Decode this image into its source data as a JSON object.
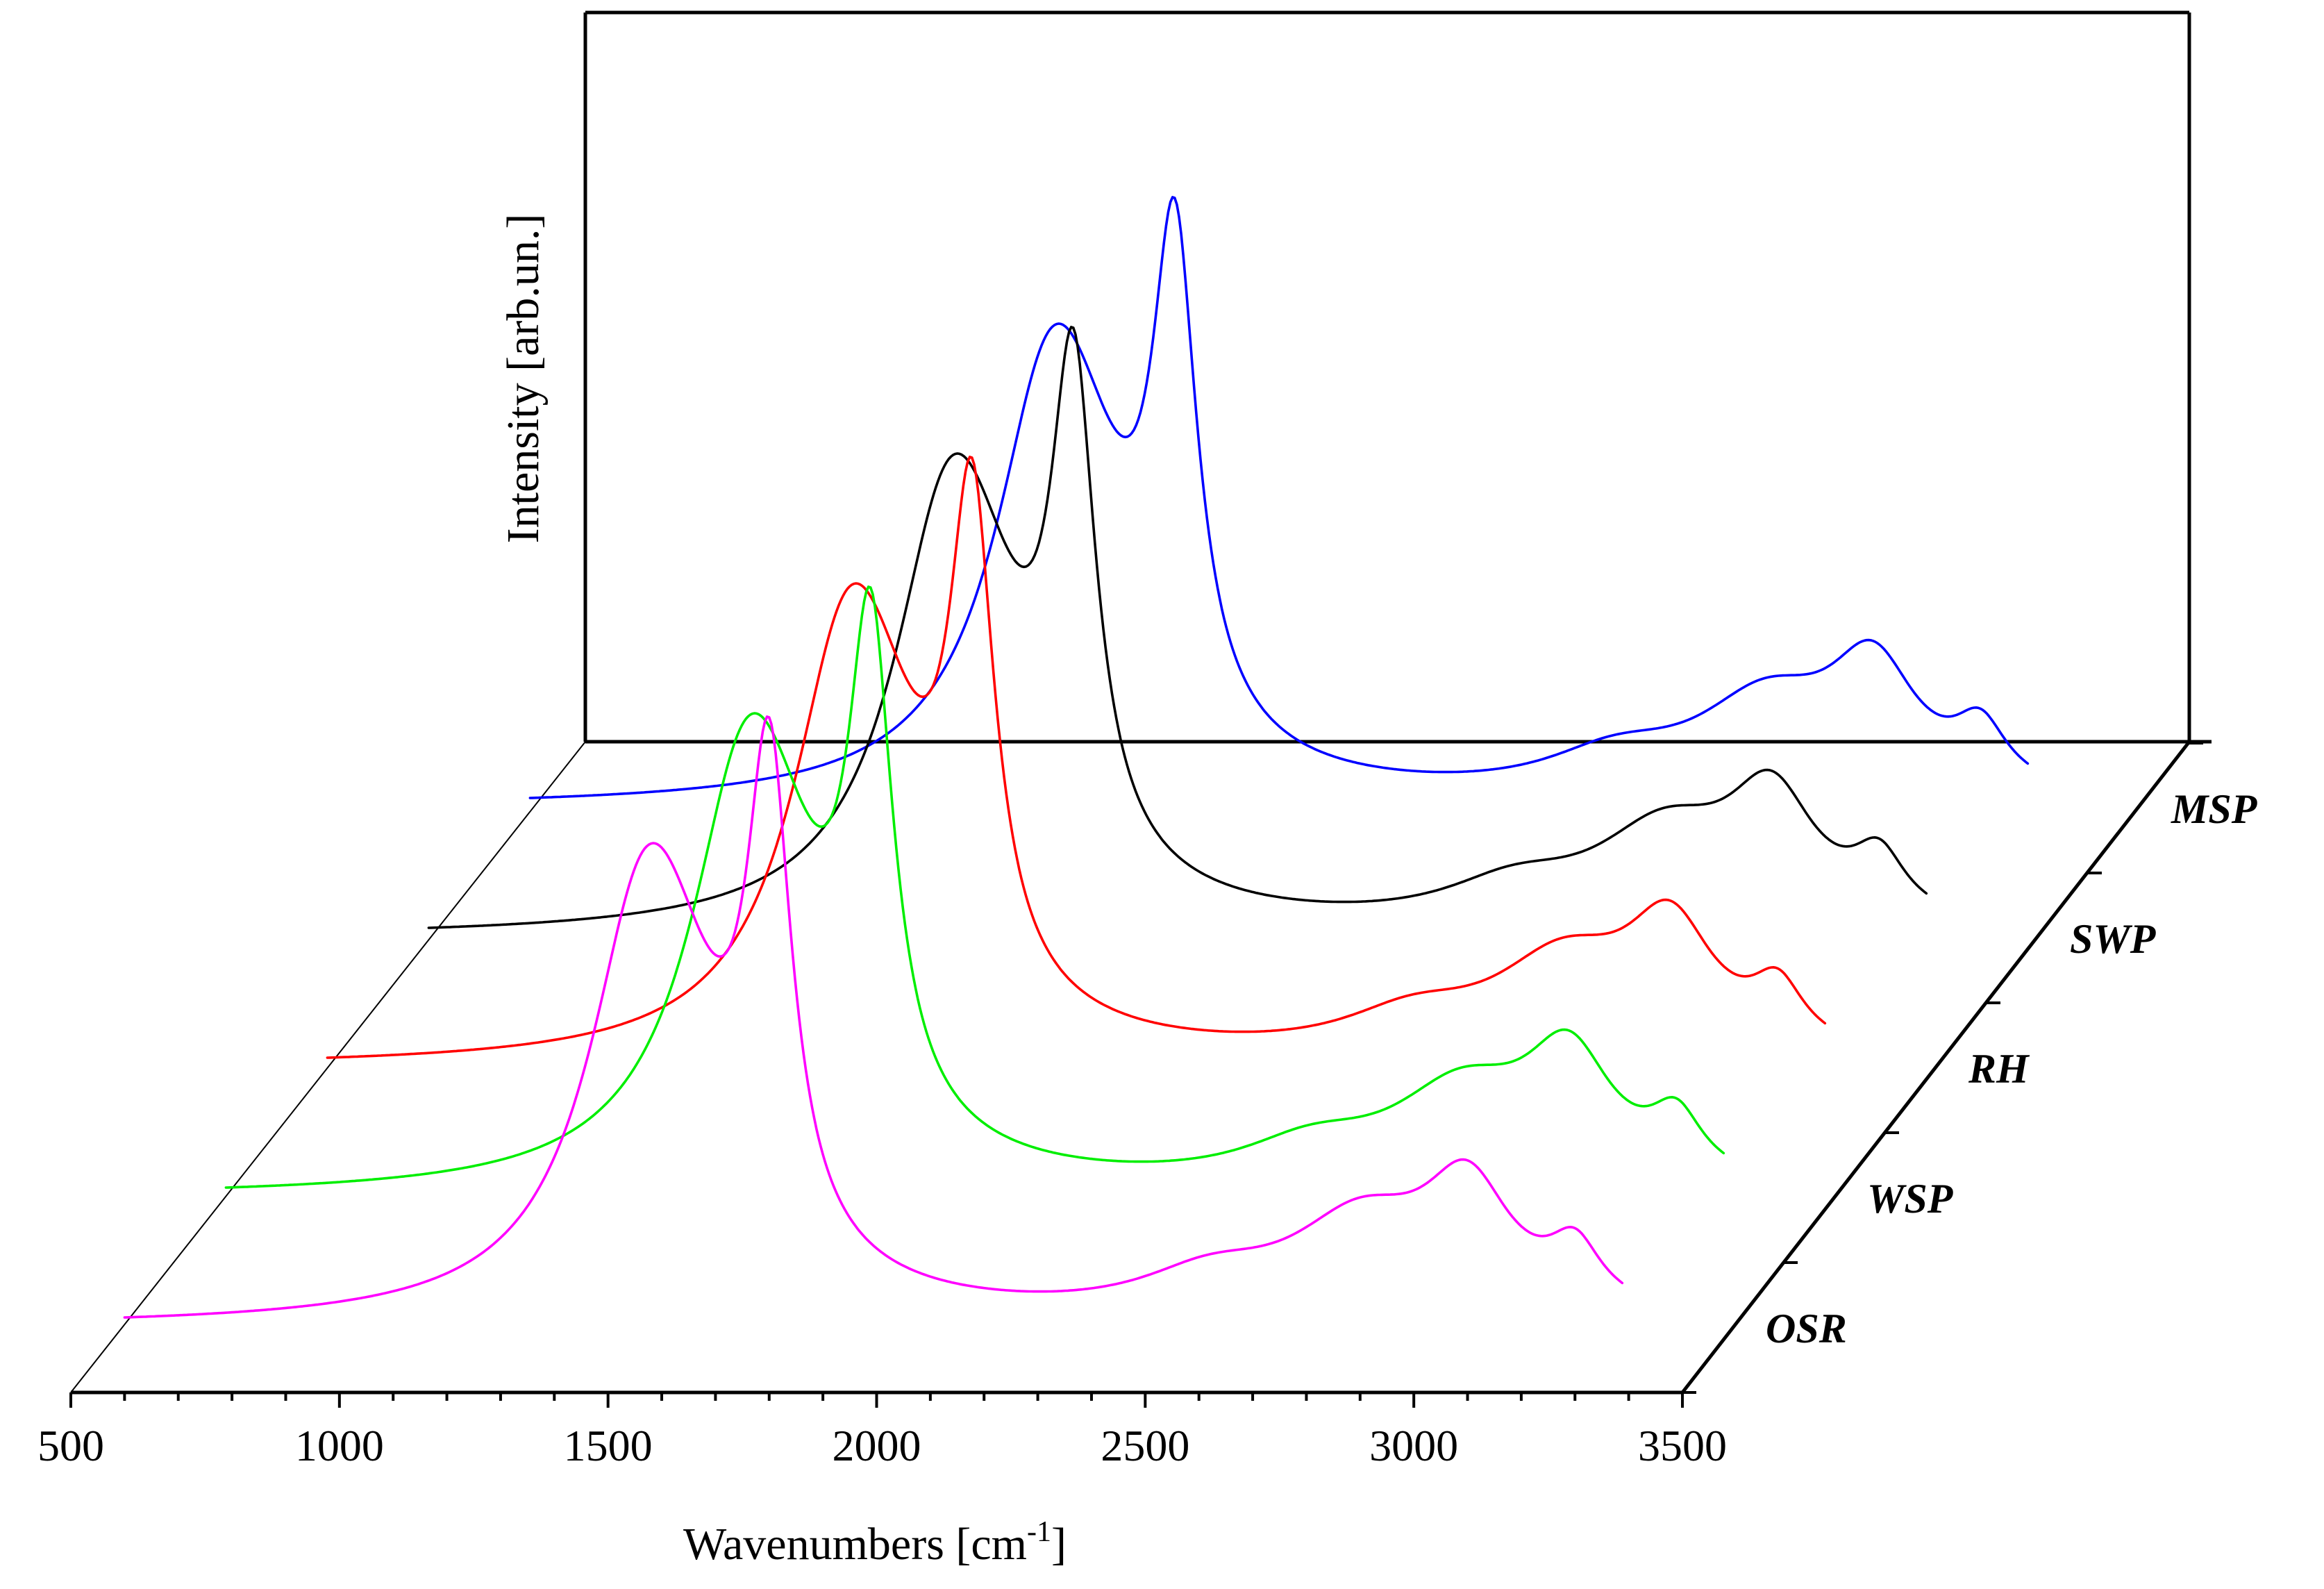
{
  "chart_data": {
    "type": "line",
    "style": "3d-waterfall",
    "title": "",
    "xlabel_main": "Wavenumbers [cm",
    "xlabel_sup": "-1",
    "xlabel_end": "]",
    "ylabel": "Intensity [arb.un.]",
    "xlim": [
      500,
      3500
    ],
    "x_ticks": [
      500,
      1000,
      1500,
      2000,
      2500,
      3000,
      3500
    ],
    "x_tick_labels": [
      "500",
      "1000",
      "1500",
      "2000",
      "2500",
      "3000",
      "3500"
    ],
    "grid": false,
    "series": [
      {
        "name": "OSR",
        "color": "#ff00ff",
        "depth": 0,
        "peaks": [
          {
            "center": 1560,
            "height": 0.75,
            "width": 120
          },
          {
            "center": 1620,
            "height": 0.58,
            "width": 145
          },
          {
            "center": 1800,
            "height": 1.3,
            "width": 50
          },
          {
            "center": 2620,
            "height": 0.1,
            "width": 160
          },
          {
            "center": 2900,
            "height": 0.25,
            "width": 160
          },
          {
            "center": 3100,
            "height": 0.33,
            "width": 100
          },
          {
            "center": 3300,
            "height": 0.16,
            "width": 60
          }
        ]
      },
      {
        "name": "WSP",
        "color": "#00ee00",
        "depth": 1,
        "peaks": [
          {
            "center": 1560,
            "height": 0.75,
            "width": 120
          },
          {
            "center": 1620,
            "height": 0.58,
            "width": 145
          },
          {
            "center": 1800,
            "height": 1.3,
            "width": 50
          },
          {
            "center": 2620,
            "height": 0.1,
            "width": 160
          },
          {
            "center": 2900,
            "height": 0.25,
            "width": 160
          },
          {
            "center": 3100,
            "height": 0.33,
            "width": 100
          },
          {
            "center": 3300,
            "height": 0.16,
            "width": 60
          }
        ]
      },
      {
        "name": "RH",
        "color": "#ff0000",
        "depth": 2,
        "peaks": [
          {
            "center": 1560,
            "height": 0.75,
            "width": 120
          },
          {
            "center": 1620,
            "height": 0.58,
            "width": 145
          },
          {
            "center": 1800,
            "height": 1.3,
            "width": 50
          },
          {
            "center": 2620,
            "height": 0.1,
            "width": 160
          },
          {
            "center": 2900,
            "height": 0.25,
            "width": 160
          },
          {
            "center": 3100,
            "height": 0.33,
            "width": 100
          },
          {
            "center": 3300,
            "height": 0.16,
            "width": 60
          }
        ]
      },
      {
        "name": "SWP",
        "color": "#000000",
        "depth": 3,
        "peaks": [
          {
            "center": 1560,
            "height": 0.75,
            "width": 120
          },
          {
            "center": 1620,
            "height": 0.58,
            "width": 145
          },
          {
            "center": 1800,
            "height": 1.3,
            "width": 50
          },
          {
            "center": 2620,
            "height": 0.1,
            "width": 160
          },
          {
            "center": 2900,
            "height": 0.25,
            "width": 160
          },
          {
            "center": 3100,
            "height": 0.33,
            "width": 100
          },
          {
            "center": 3300,
            "height": 0.16,
            "width": 60
          }
        ]
      },
      {
        "name": "MSP",
        "color": "#0000ff",
        "depth": 4,
        "peaks": [
          {
            "center": 1560,
            "height": 0.75,
            "width": 120
          },
          {
            "center": 1620,
            "height": 0.58,
            "width": 145
          },
          {
            "center": 1800,
            "height": 1.3,
            "width": 50
          },
          {
            "center": 2620,
            "height": 0.1,
            "width": 160
          },
          {
            "center": 2900,
            "height": 0.25,
            "width": 160
          },
          {
            "center": 3100,
            "height": 0.33,
            "width": 100
          },
          {
            "center": 3300,
            "height": 0.16,
            "width": 60
          }
        ]
      }
    ]
  }
}
